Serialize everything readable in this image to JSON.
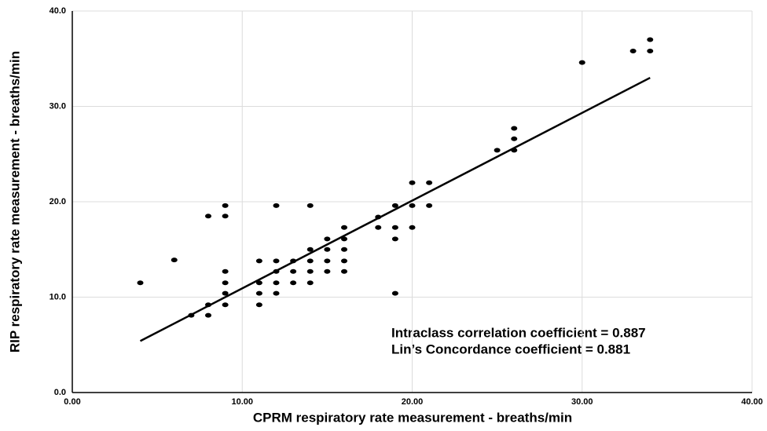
{
  "chart_data": {
    "type": "scatter",
    "x_label": "CPRM respiratory rate measurement - breaths/min",
    "y_label": "RIP respiratory rate measurement - breaths/min",
    "annotations": [
      "Intraclass correlation coefficient = 0.887",
      "Lin’s Concordance coefficient = 0.881"
    ],
    "xlim": [
      0,
      40
    ],
    "ylim": [
      0,
      40
    ],
    "xticks": [
      {
        "value": 0,
        "label": "0.00"
      },
      {
        "value": 10,
        "label": "10.00"
      },
      {
        "value": 20,
        "label": "20.00"
      },
      {
        "value": 30,
        "label": "30.00"
      },
      {
        "value": 40,
        "label": "40.00"
      }
    ],
    "yticks": [
      {
        "value": 0,
        "label": "0.0"
      },
      {
        "value": 10,
        "label": "10.0"
      },
      {
        "value": 20,
        "label": "20.0"
      },
      {
        "value": 30,
        "label": "30.0"
      },
      {
        "value": 40,
        "label": "40.0"
      }
    ],
    "grid": true,
    "point_color": "#000000",
    "x": [
      4,
      6,
      7,
      8,
      8,
      8,
      9,
      9,
      9,
      9,
      9,
      9,
      11,
      11,
      11,
      11,
      12,
      12,
      12,
      12,
      12,
      13,
      13,
      13,
      14,
      14,
      14,
      14,
      14,
      15,
      15,
      15,
      15,
      16,
      16,
      16,
      16,
      16,
      18,
      18,
      19,
      19,
      19,
      19,
      20,
      20,
      20,
      21,
      21,
      25,
      26,
      26,
      26,
      30,
      33,
      34,
      34
    ],
    "values": [
      11.5,
      13.9,
      8.1,
      8.1,
      9.2,
      18.5,
      19.6,
      18.5,
      12.7,
      11.5,
      10.4,
      9.2,
      13.8,
      11.5,
      10.4,
      9.2,
      19.6,
      13.8,
      12.7,
      11.5,
      10.4,
      13.8,
      12.7,
      11.5,
      19.6,
      15.0,
      13.8,
      12.7,
      11.5,
      16.1,
      15.0,
      13.8,
      12.7,
      17.3,
      16.1,
      15.0,
      13.8,
      12.7,
      18.4,
      17.3,
      19.6,
      17.3,
      16.1,
      10.4,
      22.0,
      19.6,
      17.3,
      22.0,
      19.6,
      25.4,
      27.7,
      26.6,
      25.4,
      34.6,
      35.8,
      37.0,
      35.8
    ],
    "trend_line": {
      "x": [
        4,
        34
      ],
      "y": [
        5.4,
        33.0
      ],
      "color": "#000000"
    }
  }
}
